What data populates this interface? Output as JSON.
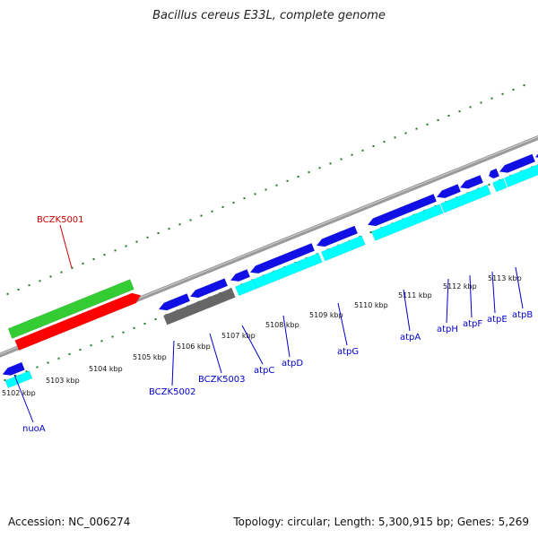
{
  "title": "Bacillus cereus E33L, complete genome",
  "accession": "Accession: NC_006274",
  "topology": "Topology: circular; Length: 5,300,915 bp; Genes: 5,269",
  "colors": {
    "cds_blue": "#1010e6",
    "rna_cyan": "#00ffff",
    "pseudo_gray": "#666666",
    "label_red": "#cc0000",
    "label_blue": "#0000cc",
    "ruler_green": "#1a7a1a",
    "backbone": "#8c8c8c",
    "green_feature": "#33cc33",
    "red_feature": "#ff0000"
  },
  "kbp_ticks": [
    "5102 kbp",
    "5103 kbp",
    "5104 kbp",
    "5105 kbp",
    "5106 kbp",
    "5107 kbp",
    "5108 kbp",
    "5109 kbp",
    "5110 kbp",
    "5111 kbp",
    "5112 kbp",
    "5113 kbp"
  ],
  "genes": [
    {
      "label": "BCZK5001",
      "color": "label_red"
    },
    {
      "label": "nuoA",
      "color": "label_blue"
    },
    {
      "label": "BCZK5002",
      "color": "label_blue"
    },
    {
      "label": "BCZK5003",
      "color": "label_blue"
    },
    {
      "label": "atpC",
      "color": "label_blue"
    },
    {
      "label": "atpD",
      "color": "label_blue"
    },
    {
      "label": "atpG",
      "color": "label_blue"
    },
    {
      "label": "atpA",
      "color": "label_blue"
    },
    {
      "label": "atpH",
      "color": "label_blue"
    },
    {
      "label": "atpF",
      "color": "label_blue"
    },
    {
      "label": "atpE",
      "color": "label_blue"
    },
    {
      "label": "atpB",
      "color": "label_blue"
    }
  ]
}
